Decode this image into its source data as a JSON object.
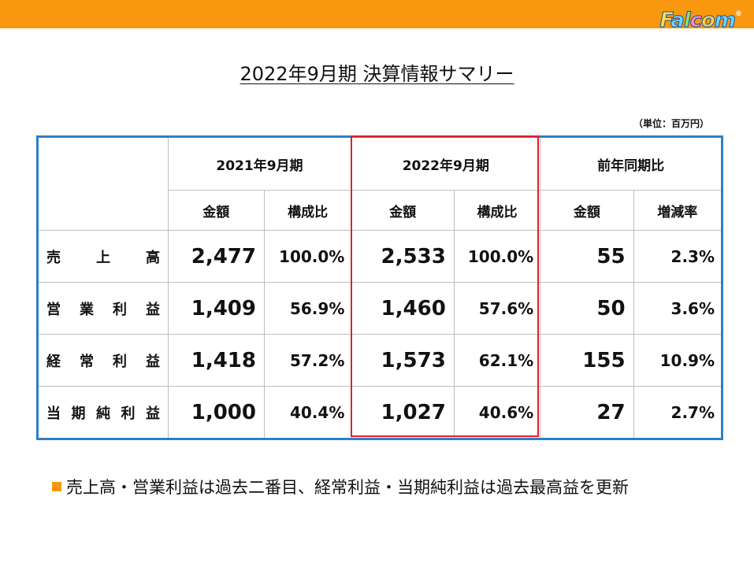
{
  "header": {
    "logo_text": "Falcom",
    "logo_mark": "®",
    "bar_color": "#f7980f"
  },
  "title": "2022年9月期 決算情報サマリー",
  "unit": "（単位：百万円）",
  "table": {
    "groups": [
      "2021年9月期",
      "2022年9月期",
      "前年同期比"
    ],
    "subheaders": [
      "金額",
      "構成比",
      "金額",
      "構成比",
      "金額",
      "増減率"
    ],
    "rows": [
      {
        "label": [
          "売",
          "上",
          "高"
        ],
        "c1": "2,477",
        "c2": "100.0%",
        "c3": "2,533",
        "c4": "100.0%",
        "c5": "55",
        "c6": "2.3%"
      },
      {
        "label": [
          "営",
          "業",
          "利",
          "益"
        ],
        "c1": "1,409",
        "c2": "56.9%",
        "c3": "1,460",
        "c4": "57.6%",
        "c5": "50",
        "c6": "3.6%"
      },
      {
        "label": [
          "経",
          "常",
          "利",
          "益"
        ],
        "c1": "1,418",
        "c2": "57.2%",
        "c3": "1,573",
        "c4": "62.1%",
        "c5": "155",
        "c6": "10.9%"
      },
      {
        "label": [
          "当",
          "期",
          "純",
          "利",
          "益"
        ],
        "c1": "1,000",
        "c2": "40.4%",
        "c3": "1,027",
        "c4": "40.6%",
        "c5": "27",
        "c6": "2.7%"
      }
    ],
    "border_color": "#2f7fc4",
    "highlight_color": "#e0202a"
  },
  "note": "売上高・営業利益は過去二番目、経常利益・当期純利益は過去最高益を更新"
}
